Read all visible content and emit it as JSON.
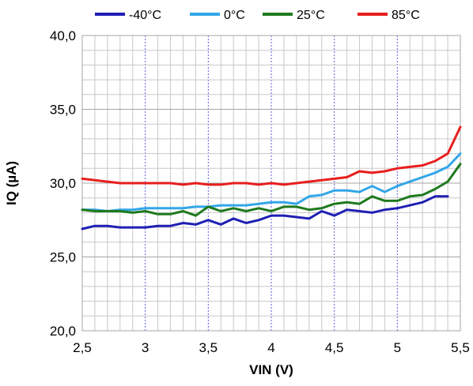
{
  "chart_data": {
    "type": "line",
    "title": "",
    "xlabel": "VIN (V)",
    "ylabel": "IQ (µA)",
    "xlim": [
      2.5,
      5.5
    ],
    "ylim": [
      20.0,
      40.0
    ],
    "x_ticks": [
      2.5,
      3,
      3.5,
      4,
      4.5,
      5,
      5.5
    ],
    "x_tick_labels": [
      "2,5",
      "3",
      "3,5",
      "4",
      "4,5",
      "5",
      "5,5"
    ],
    "y_ticks": [
      20,
      25,
      30,
      35,
      40
    ],
    "y_tick_labels": [
      "20,0",
      "25,0",
      "30,0",
      "35,0",
      "40,0"
    ],
    "grid": true,
    "legend_position": "top",
    "series": [
      {
        "name": "-40°C",
        "color": "#1f1fb4",
        "x": [
          2.5,
          2.6,
          2.7,
          2.8,
          2.9,
          3.0,
          3.1,
          3.2,
          3.3,
          3.4,
          3.5,
          3.6,
          3.7,
          3.8,
          3.9,
          4.0,
          4.1,
          4.2,
          4.3,
          4.4,
          4.5,
          4.6,
          4.7,
          4.8,
          4.9,
          5.0,
          5.1,
          5.2,
          5.3,
          5.4
        ],
        "y": [
          26.9,
          27.1,
          27.1,
          27.0,
          27.0,
          27.0,
          27.1,
          27.1,
          27.3,
          27.2,
          27.5,
          27.2,
          27.6,
          27.3,
          27.5,
          27.8,
          27.8,
          27.7,
          27.6,
          28.1,
          27.8,
          28.2,
          28.1,
          28.0,
          28.2,
          28.3,
          28.5,
          28.7,
          29.1,
          29.1
        ]
      },
      {
        "name": "0°C",
        "color": "#33a6e8",
        "x": [
          2.5,
          2.6,
          2.7,
          2.8,
          2.9,
          3.0,
          3.1,
          3.2,
          3.3,
          3.4,
          3.5,
          3.6,
          3.7,
          3.8,
          3.9,
          4.0,
          4.1,
          4.2,
          4.3,
          4.4,
          4.5,
          4.6,
          4.7,
          4.8,
          4.9,
          5.0,
          5.1,
          5.2,
          5.3,
          5.4,
          5.5
        ],
        "y": [
          28.2,
          28.2,
          28.1,
          28.2,
          28.2,
          28.3,
          28.3,
          28.3,
          28.3,
          28.4,
          28.4,
          28.5,
          28.5,
          28.5,
          28.6,
          28.7,
          28.7,
          28.6,
          29.1,
          29.2,
          29.5,
          29.5,
          29.4,
          29.8,
          29.4,
          29.8,
          30.1,
          30.4,
          30.7,
          31.1,
          32.0
        ]
      },
      {
        "name": "25°C",
        "color": "#1f7a1f",
        "x": [
          2.5,
          2.6,
          2.7,
          2.8,
          2.9,
          3.0,
          3.1,
          3.2,
          3.3,
          3.4,
          3.5,
          3.6,
          3.7,
          3.8,
          3.9,
          4.0,
          4.1,
          4.2,
          4.3,
          4.4,
          4.5,
          4.6,
          4.7,
          4.8,
          4.9,
          5.0,
          5.1,
          5.2,
          5.3,
          5.4,
          5.5
        ],
        "y": [
          28.2,
          28.1,
          28.1,
          28.1,
          28.0,
          28.1,
          27.9,
          27.9,
          28.1,
          27.8,
          28.4,
          28.1,
          28.3,
          28.1,
          28.3,
          28.1,
          28.4,
          28.4,
          28.2,
          28.3,
          28.6,
          28.7,
          28.6,
          29.1,
          28.8,
          28.8,
          29.1,
          29.2,
          29.6,
          30.1,
          31.3
        ]
      },
      {
        "name": "85°C",
        "color": "#e81e1e",
        "x": [
          2.5,
          2.6,
          2.7,
          2.8,
          2.9,
          3.0,
          3.1,
          3.2,
          3.3,
          3.4,
          3.5,
          3.6,
          3.7,
          3.8,
          3.9,
          4.0,
          4.1,
          4.2,
          4.3,
          4.4,
          4.5,
          4.6,
          4.7,
          4.8,
          4.9,
          5.0,
          5.1,
          5.2,
          5.3,
          5.4,
          5.5
        ],
        "y": [
          30.3,
          30.2,
          30.1,
          30.0,
          30.0,
          30.0,
          30.0,
          30.0,
          29.9,
          30.0,
          29.9,
          29.9,
          30.0,
          30.0,
          29.9,
          30.0,
          29.9,
          30.0,
          30.1,
          30.2,
          30.3,
          30.4,
          30.8,
          30.7,
          30.8,
          31.0,
          31.1,
          31.2,
          31.5,
          32.0,
          33.8
        ]
      }
    ]
  }
}
